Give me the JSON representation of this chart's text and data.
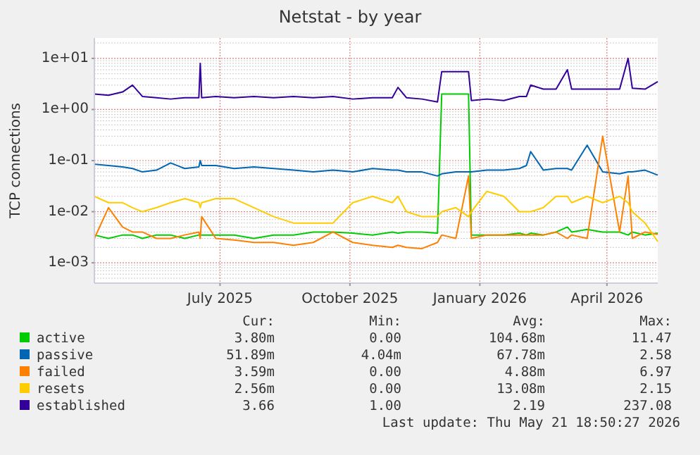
{
  "chart_data": {
    "type": "line",
    "title": "Netstat - by year",
    "ylabel": "TCP connections",
    "log": true,
    "grid": true,
    "legend": "bottom",
    "ylim": [
      0.0004,
      25
    ],
    "yticks": [
      {
        "value": 0.001,
        "label": "1e-03"
      },
      {
        "value": 0.01,
        "label": "1e-02"
      },
      {
        "value": 0.1,
        "label": "1e-01"
      },
      {
        "value": 1,
        "label": "1e+00"
      },
      {
        "value": 10,
        "label": "1e+01"
      }
    ],
    "xlim": [
      "2025-04-17",
      "2026-05-21"
    ],
    "xticks": [
      {
        "value": "2025-07-15",
        "label": "July 2025"
      },
      {
        "value": "2025-10-15",
        "label": "October 2025"
      },
      {
        "value": "2026-01-15",
        "label": "January 2026"
      },
      {
        "value": "2026-04-15",
        "label": "April 2026"
      }
    ],
    "x": [
      "2025-04-17",
      "2025-04-27",
      "2025-05-07",
      "2025-05-14",
      "2025-05-21",
      "2025-05-31",
      "2025-06-10",
      "2025-06-20",
      "2025-06-30",
      "2025-07-01",
      "2025-07-02",
      "2025-07-12",
      "2025-07-25",
      "2025-08-08",
      "2025-08-22",
      "2025-09-05",
      "2025-09-19",
      "2025-10-03",
      "2025-10-17",
      "2025-10-31",
      "2025-11-14",
      "2025-11-18",
      "2025-11-24",
      "2025-12-05",
      "2025-12-16",
      "2025-12-19",
      "2025-12-29",
      "2026-01-07",
      "2026-01-09",
      "2026-01-20",
      "2026-02-01",
      "2026-02-12",
      "2026-02-17",
      "2026-02-20",
      "2026-03-01",
      "2026-03-10",
      "2026-03-18",
      "2026-03-21",
      "2026-04-01",
      "2026-04-12",
      "2026-04-24",
      "2026-04-30",
      "2026-05-03",
      "2026-05-12",
      "2026-05-21"
    ],
    "series": [
      {
        "name": "active",
        "color": "#00cc00",
        "values": [
          0.0035,
          0.003,
          0.0035,
          0.0035,
          0.003,
          0.0035,
          0.0035,
          0.003,
          0.0035,
          0.0035,
          0.0035,
          0.0035,
          0.0035,
          0.003,
          0.0035,
          0.0035,
          0.004,
          0.004,
          0.0038,
          0.0035,
          0.004,
          0.0038,
          0.004,
          0.004,
          0.0038,
          2.0,
          2.0,
          2.0,
          0.0035,
          0.0035,
          0.0035,
          0.0038,
          0.0035,
          0.0038,
          0.0035,
          0.004,
          0.005,
          0.004,
          0.0045,
          0.004,
          0.004,
          0.0035,
          0.004,
          0.0035,
          0.0038
        ]
      },
      {
        "name": "passive",
        "color": "#0066b3",
        "values": [
          0.085,
          0.08,
          0.075,
          0.07,
          0.06,
          0.065,
          0.09,
          0.07,
          0.075,
          0.1,
          0.08,
          0.08,
          0.07,
          0.075,
          0.07,
          0.065,
          0.06,
          0.065,
          0.06,
          0.07,
          0.065,
          0.065,
          0.06,
          0.06,
          0.05,
          0.055,
          0.06,
          0.06,
          0.06,
          0.065,
          0.065,
          0.07,
          0.08,
          0.15,
          0.065,
          0.07,
          0.07,
          0.065,
          0.2,
          0.06,
          0.055,
          0.06,
          0.06,
          0.065,
          0.052
        ]
      },
      {
        "name": "failed",
        "color": "#ff8000",
        "values": [
          0.003,
          0.012,
          0.005,
          0.004,
          0.004,
          0.003,
          0.003,
          0.0035,
          0.004,
          0.003,
          0.008,
          0.003,
          0.0028,
          0.0025,
          0.0025,
          0.0022,
          0.0025,
          0.004,
          0.0025,
          0.0022,
          0.002,
          0.0022,
          0.002,
          0.0019,
          0.0025,
          0.0035,
          0.003,
          0.05,
          0.003,
          0.0035,
          0.0035,
          0.0035,
          0.0035,
          0.0035,
          0.0035,
          0.004,
          0.003,
          0.0035,
          0.003,
          0.3,
          0.004,
          0.05,
          0.003,
          0.004,
          0.0036
        ]
      },
      {
        "name": "resets",
        "color": "#ffcc00",
        "values": [
          0.02,
          0.015,
          0.015,
          0.012,
          0.01,
          0.012,
          0.015,
          0.018,
          0.015,
          0.012,
          0.015,
          0.018,
          0.018,
          0.012,
          0.008,
          0.006,
          0.006,
          0.006,
          0.015,
          0.02,
          0.015,
          0.02,
          0.01,
          0.008,
          0.008,
          0.01,
          0.012,
          0.008,
          0.01,
          0.025,
          0.02,
          0.01,
          0.01,
          0.01,
          0.012,
          0.02,
          0.02,
          0.015,
          0.02,
          0.015,
          0.02,
          0.015,
          0.01,
          0.006,
          0.0026
        ]
      },
      {
        "name": "established",
        "color": "#330099",
        "values": [
          2.0,
          1.9,
          2.2,
          3.0,
          1.8,
          1.7,
          1.6,
          1.7,
          1.7,
          8.0,
          1.7,
          1.8,
          1.7,
          1.8,
          1.7,
          1.8,
          1.7,
          1.8,
          1.6,
          1.7,
          1.7,
          2.7,
          1.7,
          1.6,
          1.4,
          5.5,
          5.5,
          5.5,
          1.5,
          1.6,
          1.5,
          1.8,
          1.8,
          3.0,
          2.5,
          2.5,
          6.0,
          2.5,
          2.5,
          2.5,
          2.5,
          10.0,
          2.6,
          2.5,
          3.5
        ]
      }
    ],
    "annotations": [
      "Cur:",
      "Min:",
      "Avg:",
      "Max:",
      "3.80m",
      "0.00",
      "104.68m",
      "11.47",
      "51.89m",
      "4.04m",
      "67.78m",
      "2.58",
      "3.59m",
      "0.00",
      "4.88m",
      "6.97",
      "2.56m",
      "0.00",
      "13.08m",
      "2.15",
      "3.66",
      "1.00",
      "2.19",
      "237.08",
      "Last update: Thu May 21 18:50:27 2026"
    ]
  }
}
